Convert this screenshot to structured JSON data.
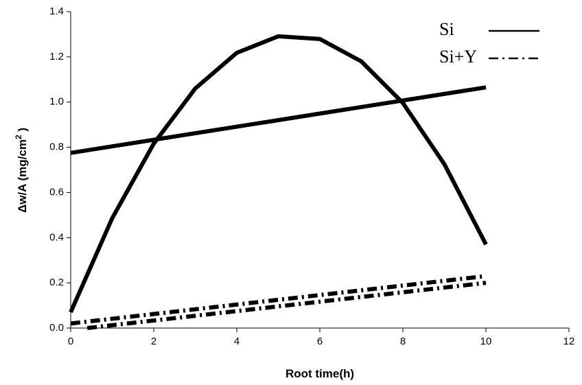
{
  "chart_data": {
    "type": "line",
    "xlabel": "Root time(h)",
    "ylabel": {
      "text": "Δw/A (mg/cm",
      "sup": "2",
      "end": " )"
    },
    "xlim": [
      0,
      12
    ],
    "xticks": [
      0,
      2,
      4,
      6,
      8,
      10,
      12
    ],
    "ylim": [
      0,
      1.4
    ],
    "yticks": [
      {
        "value": 0,
        "label": "0.0"
      },
      0.2,
      0.4,
      0.6,
      0.8,
      {
        "value": 1,
        "label": "1.0"
      },
      1.2,
      1.4
    ],
    "legend": "upper right",
    "series": [
      {
        "name": "Si",
        "color": "#000000",
        "dash": "solid",
        "curves": [
          {
            "x": [
              0,
              1,
              2,
              3,
              4,
              5,
              6,
              7,
              8,
              9,
              10
            ],
            "values": [
              0.07,
              0.486,
              0.816,
              1.06,
              1.218,
              1.291,
              1.279,
              1.18,
              0.996,
              0.725,
              0.37
            ]
          },
          {
            "x": [
              0,
              10
            ],
            "values": [
              0.775,
              1.065
            ]
          }
        ]
      },
      {
        "name": "Si+Y",
        "color": "#000000",
        "dash": "dashdot",
        "curves": [
          {
            "x": [
              0,
              10
            ],
            "values": [
              0.02,
              0.23
            ]
          },
          {
            "x": [
              0.4,
              10
            ],
            "values": [
              0,
              0.2
            ]
          }
        ]
      }
    ]
  }
}
